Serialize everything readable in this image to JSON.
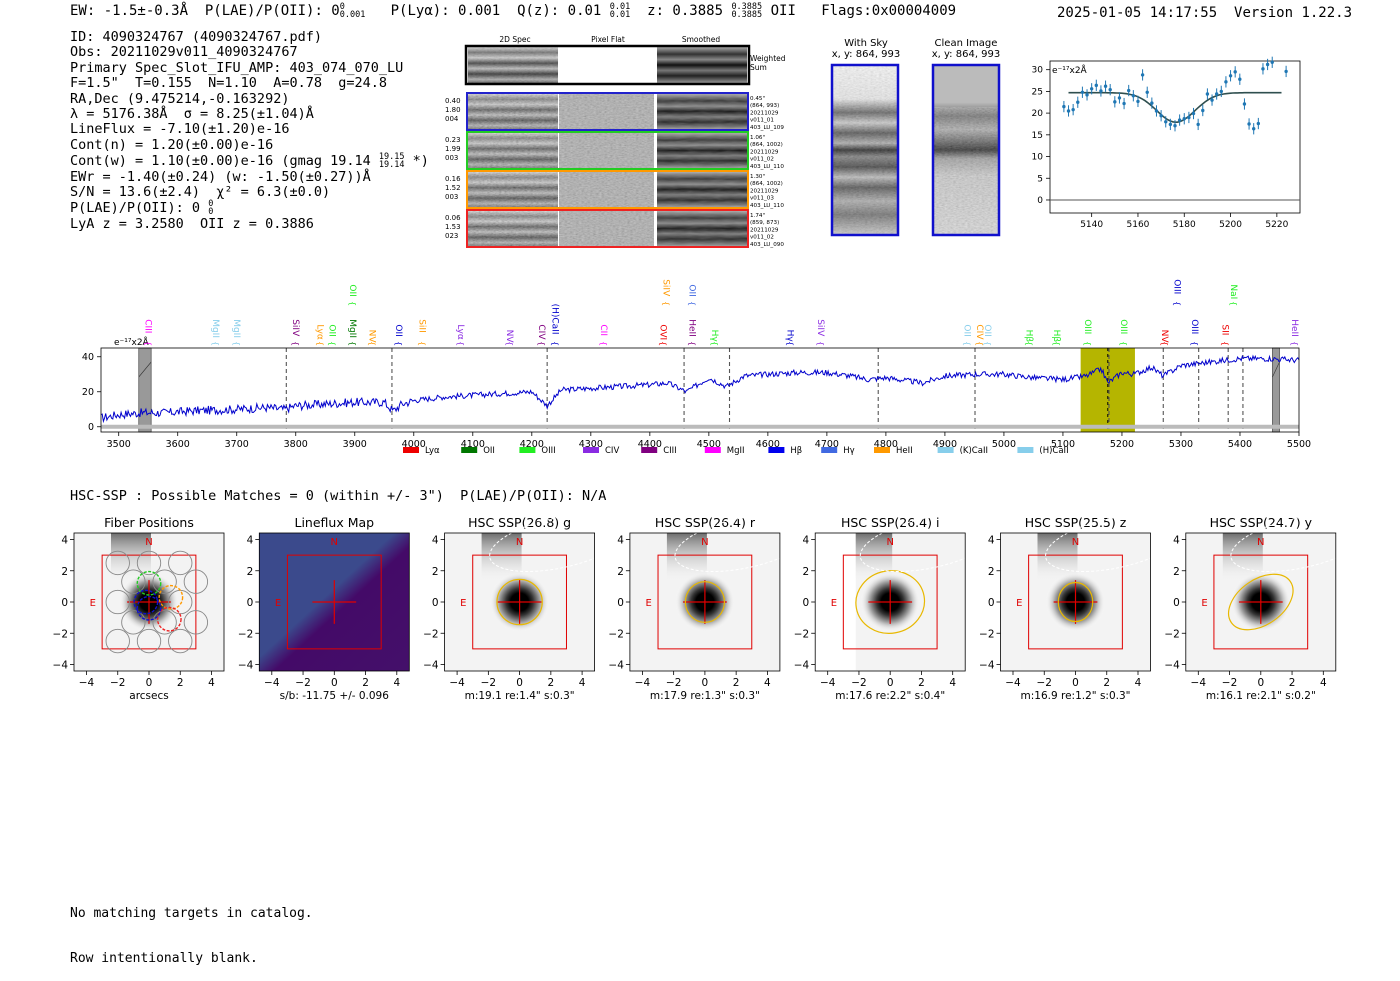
{
  "header": {
    "ew": "EW: -1.5±-0.3Å",
    "plae_label": "P(LAE)/P(OII): 0",
    "plae_sup": "0",
    "plae_sub": "0.001",
    "plya": "P(Lyα): 0.001",
    "qz_label": "Q(z): 0.01",
    "qz_sup": "0.01",
    "qz_sub": "0.01",
    "z_label": "z: 0.3885",
    "z_sup": "0.3885",
    "z_sub": "0.3885",
    "z_line": "OII",
    "flags": "Flags:0x00004009",
    "datetime": "2025-01-05 14:17:55",
    "version": "Version 1.22.3"
  },
  "info": {
    "id": "ID: 4090324767 (4090324767.pdf)",
    "obs": "Obs: 20211029v011_4090324767",
    "slot": "Primary Spec_Slot_IFU_AMP: 403_074_070_LU",
    "fit": "F=1.5\"  T=0.155  N=1.10  A=0.78  g=24.8",
    "radec": "RA,Dec (9.475214,-0.163292)",
    "lambda": "λ = 5176.38Å  σ = 8.25(±1.04)Å",
    "lineflux": "LineFlux = -7.10(±1.20)e-16",
    "contn": "Cont(n) = 1.20(±0.00)e-16",
    "contw": "Cont(w) = 1.10(±0.00)e-16 (gmag 19.14",
    "contw_sup": "19.15",
    "contw_sub": "19.14",
    "contw_end": "*)",
    "ewr": "EWr = -1.40(±0.24) (w: -1.50(±0.27))Å",
    "sn": "S/N = 13.6(±2.4)  χ² = 6.3(±0.0)",
    "plae2": "P(LAE)/P(OII): 0",
    "plae2_sup": "0",
    "plae2_sub": "0",
    "lya": "LyA z = 3.2580  OII z = 0.3886"
  },
  "cutouts": {
    "col_headers": [
      "2D Spec",
      "Pixel Flat",
      "Smoothed"
    ],
    "weighted_label": [
      "Weighted",
      "Sum"
    ],
    "rows": [
      {
        "left": [
          "0.40",
          "1.80",
          "004"
        ],
        "right": [
          "0.45\"",
          "(864, 993)",
          "20211029",
          "v011_01",
          "403_LU_109"
        ],
        "color": "#2222cc"
      },
      {
        "left": [
          "0.23",
          "1.99",
          "003"
        ],
        "right": [
          "1.06\"",
          "(864, 1002)",
          "20211029",
          "v011_02",
          "403_LU_110"
        ],
        "color": "#22cc22"
      },
      {
        "left": [
          "0.16",
          "1.52",
          "003"
        ],
        "right": [
          "1.30\"",
          "(864, 1002)",
          "20211029",
          "v011_03",
          "403_LU_110"
        ],
        "color": "#ff9900"
      },
      {
        "left": [
          "0.06",
          "1.53",
          "023"
        ],
        "right": [
          "1.74\"",
          "(859, 873)",
          "20211029",
          "v011_02",
          "403_LU_090"
        ],
        "color": "#ee2222"
      }
    ]
  },
  "sky": {
    "with_sky_title": "With Sky",
    "with_sky_xy": "x, y: 864, 993",
    "clean_title": "Clean Image",
    "clean_xy": "x, y: 864, 993"
  },
  "colors": {
    "fiber_blue": "#1f77b4",
    "spectrum_blue": "#0000cc",
    "highlight": "#b5b500",
    "box_red": "#e00000",
    "ellipse_yellow": "#e8b800"
  },
  "chart_data": [
    {
      "type": "scatter",
      "name": "line-fit-zoom",
      "ylabel_unit": "e⁻¹⁷x2Å",
      "xlim": [
        5122,
        5230
      ],
      "ylim": [
        -3,
        32
      ],
      "xticks": [
        5140,
        5160,
        5180,
        5200,
        5220
      ],
      "yticks": [
        0,
        5,
        10,
        15,
        20,
        25,
        30
      ],
      "points": [
        [
          5128,
          21.5
        ],
        [
          5130,
          20.5
        ],
        [
          5132,
          20.8
        ],
        [
          5134,
          22.5
        ],
        [
          5136,
          24.8
        ],
        [
          5138,
          24.2
        ],
        [
          5140,
          25.6
        ],
        [
          5142,
          26.4
        ],
        [
          5144,
          25.1
        ],
        [
          5146,
          26.2
        ],
        [
          5148,
          25.4
        ],
        [
          5150,
          22.6
        ],
        [
          5152,
          23.5
        ],
        [
          5154,
          22.2
        ],
        [
          5156,
          25.2
        ],
        [
          5158,
          24.0
        ],
        [
          5160,
          22.7
        ],
        [
          5162,
          28.8
        ],
        [
          5164,
          24.8
        ],
        [
          5166,
          22.3
        ],
        [
          5168,
          20.5
        ],
        [
          5170,
          19.4
        ],
        [
          5172,
          18.0
        ],
        [
          5174,
          17.4
        ],
        [
          5176,
          17.1
        ],
        [
          5178,
          18.4
        ],
        [
          5180,
          18.7
        ],
        [
          5182,
          19.0
        ],
        [
          5184,
          19.9
        ],
        [
          5186,
          17.4
        ],
        [
          5188,
          20.6
        ],
        [
          5190,
          24.4
        ],
        [
          5192,
          23.0
        ],
        [
          5194,
          24.4
        ],
        [
          5196,
          25.0
        ],
        [
          5198,
          27.2
        ],
        [
          5200,
          28.6
        ],
        [
          5202,
          29.5
        ],
        [
          5204,
          27.8
        ],
        [
          5206,
          22.1
        ],
        [
          5208,
          17.5
        ],
        [
          5210,
          16.4
        ],
        [
          5212,
          17.6
        ],
        [
          5214,
          30.2
        ],
        [
          5216,
          31.2
        ],
        [
          5218,
          31.7
        ],
        [
          5224,
          29.6
        ]
      ],
      "fit": {
        "continuum": 24.7,
        "center": 5176.38,
        "sigma": 8.25,
        "depth": 6.8
      }
    },
    {
      "type": "line",
      "name": "full-spectrum",
      "ylabel_unit": "e⁻¹⁷x2Å",
      "xlim": [
        3470,
        5500
      ],
      "ylim": [
        -3,
        45
      ],
      "xticks": [
        3500,
        3600,
        3700,
        3800,
        3900,
        4000,
        4100,
        4200,
        4300,
        4400,
        4500,
        4600,
        4700,
        4800,
        4900,
        5000,
        5100,
        5200,
        5300,
        5400,
        5500
      ],
      "yticks": [
        0,
        20,
        40
      ],
      "anchors": [
        [
          3470,
          5
        ],
        [
          3500,
          7
        ],
        [
          3540,
          8
        ],
        [
          3580,
          8
        ],
        [
          3620,
          9
        ],
        [
          3700,
          10
        ],
        [
          3750,
          11
        ],
        [
          3780,
          10
        ],
        [
          3800,
          12
        ],
        [
          3850,
          13
        ],
        [
          3900,
          14
        ],
        [
          3950,
          14
        ],
        [
          3965,
          9
        ],
        [
          3980,
          13
        ],
        [
          4000,
          15
        ],
        [
          4050,
          17
        ],
        [
          4100,
          18
        ],
        [
          4150,
          19
        ],
        [
          4200,
          20
        ],
        [
          4226,
          12
        ],
        [
          4250,
          21
        ],
        [
          4300,
          22
        ],
        [
          4350,
          23
        ],
        [
          4400,
          24
        ],
        [
          4430,
          25
        ],
        [
          4462,
          20
        ],
        [
          4500,
          28
        ],
        [
          4530,
          23
        ],
        [
          4560,
          29
        ],
        [
          4600,
          30
        ],
        [
          4650,
          31
        ],
        [
          4700,
          31
        ],
        [
          4740,
          29
        ],
        [
          4770,
          27
        ],
        [
          4800,
          28
        ],
        [
          4862,
          25
        ],
        [
          4900,
          29
        ],
        [
          4950,
          30
        ],
        [
          5000,
          30
        ],
        [
          5050,
          28
        ],
        [
          5100,
          27
        ],
        [
          5140,
          29
        ],
        [
          5165,
          33
        ],
        [
          5176,
          25
        ],
        [
          5200,
          31
        ],
        [
          5220,
          30
        ],
        [
          5250,
          34
        ],
        [
          5270,
          29
        ],
        [
          5300,
          35
        ],
        [
          5350,
          37
        ],
        [
          5400,
          39
        ],
        [
          5450,
          39
        ],
        [
          5500,
          38
        ]
      ],
      "highlight_band": [
        5130,
        5222
      ],
      "masked_bands": [
        [
          3534,
          3555
        ],
        [
          5455,
          5467
        ]
      ],
      "dashed_lines": [
        3784,
        3963,
        4226,
        4458,
        4535,
        4787,
        4951,
        5178,
        5270,
        5330,
        5380,
        5405
      ],
      "legend": [
        {
          "label": "Lyα",
          "color": "#ee0000"
        },
        {
          "label": "OII",
          "color": "#007700"
        },
        {
          "label": "OIII",
          "color": "#22ee22"
        },
        {
          "label": "CIV",
          "color": "#8a2be2"
        },
        {
          "label": "CIII",
          "color": "#800080"
        },
        {
          "label": "MgII",
          "color": "#ff00ff"
        },
        {
          "label": "Hβ",
          "color": "#0000ee"
        },
        {
          "label": "Hγ",
          "color": "#4169e1"
        },
        {
          "label": "HeII",
          "color": "#ff9900"
        },
        {
          "label": "(K)CaII",
          "color": "#87ceeb"
        },
        {
          "label": "(H)CaII",
          "color": "#87ceeb"
        }
      ],
      "line_labels": [
        {
          "label": "CIII",
          "wave": 3540,
          "color": "#ff00ff",
          "row": 0
        },
        {
          "label": "MgII",
          "wave": 3655,
          "color": "#87ceeb",
          "row": 0
        },
        {
          "label": "MgII",
          "wave": 3690,
          "color": "#87ceeb",
          "row": 0
        },
        {
          "label": "SiIV",
          "wave": 3790,
          "color": "#800080",
          "row": 0
        },
        {
          "label": "Lyα",
          "wave": 3832,
          "color": "#ff9900",
          "row": 0
        },
        {
          "label": "OII",
          "wave": 3852,
          "color": "#22ee22",
          "row": 0
        },
        {
          "label": "MgII",
          "wave": 3887,
          "color": "#007700",
          "row": 0
        },
        {
          "label": "OII",
          "wave": 3887,
          "color": "#22ee22",
          "row": 1
        },
        {
          "label": "NV",
          "wave": 3920,
          "color": "#ff9900",
          "row": 0
        },
        {
          "label": "OII",
          "wave": 3965,
          "color": "#0000cc",
          "row": 0
        },
        {
          "label": "SiII",
          "wave": 4005,
          "color": "#ff9900",
          "row": 0
        },
        {
          "label": "Lyα",
          "wave": 4070,
          "color": "#8a2be2",
          "row": 0
        },
        {
          "label": "NV",
          "wave": 4153,
          "color": "#8a2be2",
          "row": 0
        },
        {
          "label": "CIV",
          "wave": 4207,
          "color": "#800080",
          "row": 0
        },
        {
          "label": "(H)CaII",
          "wave": 4230,
          "color": "#0000cc",
          "row": 0
        },
        {
          "label": "CII",
          "wave": 4312,
          "color": "#ff00ff",
          "row": 0
        },
        {
          "label": "OVI",
          "wave": 4413,
          "color": "#ee0000",
          "row": 0
        },
        {
          "label": "SiIV",
          "wave": 4418,
          "color": "#ff9900",
          "row": 1
        },
        {
          "label": "HeII",
          "wave": 4462,
          "color": "#800080",
          "row": 0
        },
        {
          "label": "OII",
          "wave": 4462,
          "color": "#4169e1",
          "row": 1
        },
        {
          "label": "Hγ",
          "wave": 4500,
          "color": "#22ee22",
          "row": 0
        },
        {
          "label": "Hγ",
          "wave": 4628,
          "color": "#0000cc",
          "row": 0
        },
        {
          "label": "SiIV",
          "wave": 4680,
          "color": "#8a2be2",
          "row": 0
        },
        {
          "label": "OII",
          "wave": 4928,
          "color": "#87ceeb",
          "row": 0
        },
        {
          "label": "CIV",
          "wave": 4949,
          "color": "#ff9900",
          "row": 0
        },
        {
          "label": "OII",
          "wave": 4963,
          "color": "#87ceeb",
          "row": 0
        },
        {
          "label": "Hβ",
          "wave": 5033,
          "color": "#22ee22",
          "row": 0
        },
        {
          "label": "Hβ",
          "wave": 5080,
          "color": "#22ee22",
          "row": 0
        },
        {
          "label": "OIII",
          "wave": 5132,
          "color": "#22ee22",
          "row": 0
        },
        {
          "label": "OIII",
          "wave": 5193,
          "color": "#22ee22",
          "row": 0
        },
        {
          "label": "NV",
          "wave": 5263,
          "color": "#ee0000",
          "row": 0
        },
        {
          "label": "OIII",
          "wave": 5284,
          "color": "#0000cc",
          "row": 1
        },
        {
          "label": "OIII",
          "wave": 5314,
          "color": "#0000cc",
          "row": 0
        },
        {
          "label": "NaI",
          "wave": 5380,
          "color": "#22ee22",
          "row": 1
        },
        {
          "label": "SII",
          "wave": 5365,
          "color": "#ee0000",
          "row": 0
        },
        {
          "label": "HeII",
          "wave": 5483,
          "color": "#8a2be2",
          "row": 0
        }
      ]
    }
  ],
  "hsc": {
    "title": "HSC-SSP : Possible Matches = 0 (within +/- 3\")  P(LAE)/P(OII): N/A",
    "panels": [
      {
        "title": "Fiber Positions",
        "caption": "arcsecs",
        "kind": "fibers"
      },
      {
        "title": "Lineflux Map",
        "caption": "s/b: -11.75 +/- 0.096",
        "kind": "lineflux"
      },
      {
        "title": "HSC SSP(26.8) g",
        "caption": "m:19.1  re:1.4\"  s:0.3\"",
        "kind": "img",
        "ellipse": [
          1.45,
          1.45,
          0
        ]
      },
      {
        "title": "HSC SSP(26.4) r",
        "caption": "m:17.9  re:1.3\"  s:0.3\"",
        "kind": "img",
        "ellipse": [
          1.25,
          1.3,
          0
        ]
      },
      {
        "title": "HSC SSP(26.4) i",
        "caption": "m:17.6  re:2.2\"  s:0.4\"",
        "kind": "img",
        "ellipse": [
          2.2,
          2.0,
          -10
        ]
      },
      {
        "title": "HSC SSP(25.5) z",
        "caption": "m:16.9  re:1.2\"  s:0.3\"",
        "kind": "img",
        "ellipse": [
          1.1,
          1.25,
          0
        ]
      },
      {
        "title": "HSC SSP(24.7) y",
        "caption": "m:16.1  re:2.1\"  s:0.2\"",
        "kind": "img",
        "ellipse": [
          2.3,
          1.45,
          -35
        ]
      }
    ],
    "axis_ticks": [
      "−4",
      "−2",
      "0",
      "2",
      "4"
    ],
    "north_label": "N",
    "east_label": "E"
  },
  "footer": {
    "line1": "No matching targets in catalog.",
    "line2": "Row intentionally blank."
  }
}
